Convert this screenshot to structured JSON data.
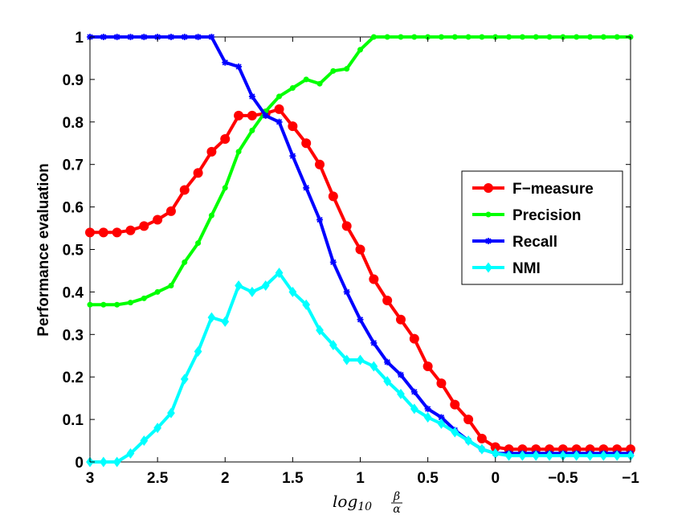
{
  "chart_data": {
    "type": "line",
    "xlabel": {
      "base": "log",
      "subscript": "10",
      "numerator": "β",
      "denominator": "α"
    },
    "ylabel": "Performance evaluation",
    "xlim": [
      3,
      -1
    ],
    "ylim": [
      0,
      1
    ],
    "grid": false,
    "legend_position": "right",
    "x_ticks": [
      3,
      2.5,
      2,
      1.5,
      1,
      0.5,
      0,
      -0.5,
      -1
    ],
    "x_tick_labels": [
      "3",
      "2.5",
      "2",
      "1.5",
      "1",
      "0.5",
      "0",
      "−0.5",
      "−1"
    ],
    "y_ticks": [
      0,
      0.1,
      0.2,
      0.3,
      0.4,
      0.5,
      0.6,
      0.7,
      0.8,
      0.9,
      1
    ],
    "y_tick_labels": [
      "0",
      "0.1",
      "0.2",
      "0.3",
      "0.4",
      "0.5",
      "0.6",
      "0.7",
      "0.8",
      "0.9",
      "1"
    ],
    "x": [
      3.0,
      2.9,
      2.8,
      2.7,
      2.6,
      2.5,
      2.4,
      2.3,
      2.2,
      2.1,
      2.0,
      1.9,
      1.8,
      1.7,
      1.6,
      1.5,
      1.4,
      1.3,
      1.2,
      1.1,
      1.0,
      0.9,
      0.8,
      0.7,
      0.6,
      0.5,
      0.4,
      0.3,
      0.2,
      0.1,
      0.0,
      -0.1,
      -0.2,
      -0.3,
      -0.4,
      -0.5,
      -0.6,
      -0.7,
      -0.8,
      -0.9,
      -1.0
    ],
    "series": [
      {
        "name": "F−measure",
        "color": "#ff0000",
        "marker": "circle",
        "values": [
          0.54,
          0.54,
          0.54,
          0.545,
          0.555,
          0.57,
          0.59,
          0.64,
          0.68,
          0.73,
          0.76,
          0.815,
          0.815,
          0.82,
          0.83,
          0.79,
          0.75,
          0.7,
          0.625,
          0.555,
          0.5,
          0.43,
          0.38,
          0.335,
          0.29,
          0.225,
          0.185,
          0.135,
          0.1,
          0.055,
          0.035,
          0.03,
          0.03,
          0.03,
          0.03,
          0.03,
          0.03,
          0.03,
          0.03,
          0.03,
          0.03
        ]
      },
      {
        "name": "Precision",
        "color": "#00ff00",
        "marker": "dot",
        "values": [
          0.37,
          0.37,
          0.37,
          0.375,
          0.385,
          0.4,
          0.415,
          0.47,
          0.515,
          0.58,
          0.645,
          0.73,
          0.78,
          0.825,
          0.86,
          0.88,
          0.9,
          0.89,
          0.92,
          0.925,
          0.97,
          1.0,
          1.0,
          1.0,
          1.0,
          1.0,
          1.0,
          1.0,
          1.0,
          1.0,
          1.0,
          1.0,
          1.0,
          1.0,
          1.0,
          1.0,
          1.0,
          1.0,
          1.0,
          1.0,
          1.0
        ]
      },
      {
        "name": "Recall",
        "color": "#0000ff",
        "marker": "star",
        "values": [
          1.0,
          1.0,
          1.0,
          1.0,
          1.0,
          1.0,
          1.0,
          1.0,
          1.0,
          1.0,
          0.94,
          0.93,
          0.86,
          0.815,
          0.8,
          0.72,
          0.645,
          0.57,
          0.47,
          0.4,
          0.335,
          0.28,
          0.235,
          0.205,
          0.165,
          0.125,
          0.105,
          0.075,
          0.05,
          0.03,
          0.02,
          0.02,
          0.02,
          0.02,
          0.02,
          0.02,
          0.02,
          0.02,
          0.02,
          0.02,
          0.02
        ]
      },
      {
        "name": "NMI",
        "color": "#00ffff",
        "marker": "diamond",
        "values": [
          0.0,
          0.0,
          0.0,
          0.02,
          0.05,
          0.08,
          0.115,
          0.195,
          0.26,
          0.34,
          0.33,
          0.415,
          0.4,
          0.415,
          0.445,
          0.4,
          0.37,
          0.31,
          0.275,
          0.24,
          0.24,
          0.225,
          0.19,
          0.16,
          0.125,
          0.105,
          0.09,
          0.07,
          0.05,
          0.03,
          0.02,
          0.015,
          0.015,
          0.015,
          0.015,
          0.015,
          0.015,
          0.015,
          0.015,
          0.015,
          0.015
        ]
      }
    ]
  }
}
